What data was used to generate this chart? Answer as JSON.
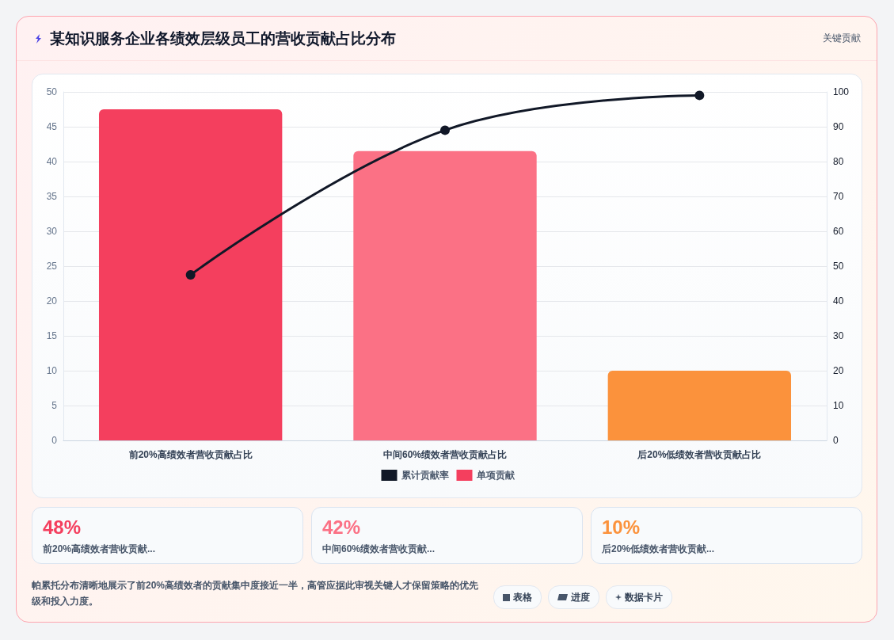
{
  "chart_data": {
    "type": "bar",
    "title": "某知识服务企业各绩效层级员工的营收贡献占比分布",
    "categories": [
      "前20%高绩效者营收贡献占比",
      "中间60%绩效者营收贡献占比",
      "后20%低绩效者营收贡献占比"
    ],
    "series": [
      {
        "name": "累计贡献率",
        "type": "line",
        "axis": "y2",
        "color": "#111827",
        "values": [
          47.5,
          89,
          99
        ]
      },
      {
        "name": "单项贡献",
        "color": "#f43f5e",
        "colors": [
          "#f43f5e",
          "#fb7185",
          "#fb923c"
        ],
        "values": [
          47.5,
          41.5,
          10
        ]
      }
    ],
    "ylim": [
      0,
      50
    ],
    "yticks": [
      0,
      5,
      10,
      15,
      20,
      25,
      30,
      35,
      40,
      45,
      50
    ],
    "y2lim": [
      0,
      100
    ],
    "y2ticks": [
      0,
      10,
      20,
      30,
      40,
      50,
      60,
      70,
      80,
      90,
      100
    ],
    "grid": "y",
    "legend": "bottom",
    "marker": "circle",
    "line_style": "solid",
    "annotations": [
      "关键贡献",
      "48%",
      "前20%高绩效者营收贡献...",
      "42%",
      "中间60%绩效者营收贡献...",
      "10%",
      "后20%低绩效者营收贡献...",
      "帕累托分布清晰地展示了前20%高绩效者的贡献集中度接近一半，高管应据此审视关键人才保留策略的优先级和投入力度。",
      "表格",
      "进度",
      "数据卡片"
    ]
  }
}
